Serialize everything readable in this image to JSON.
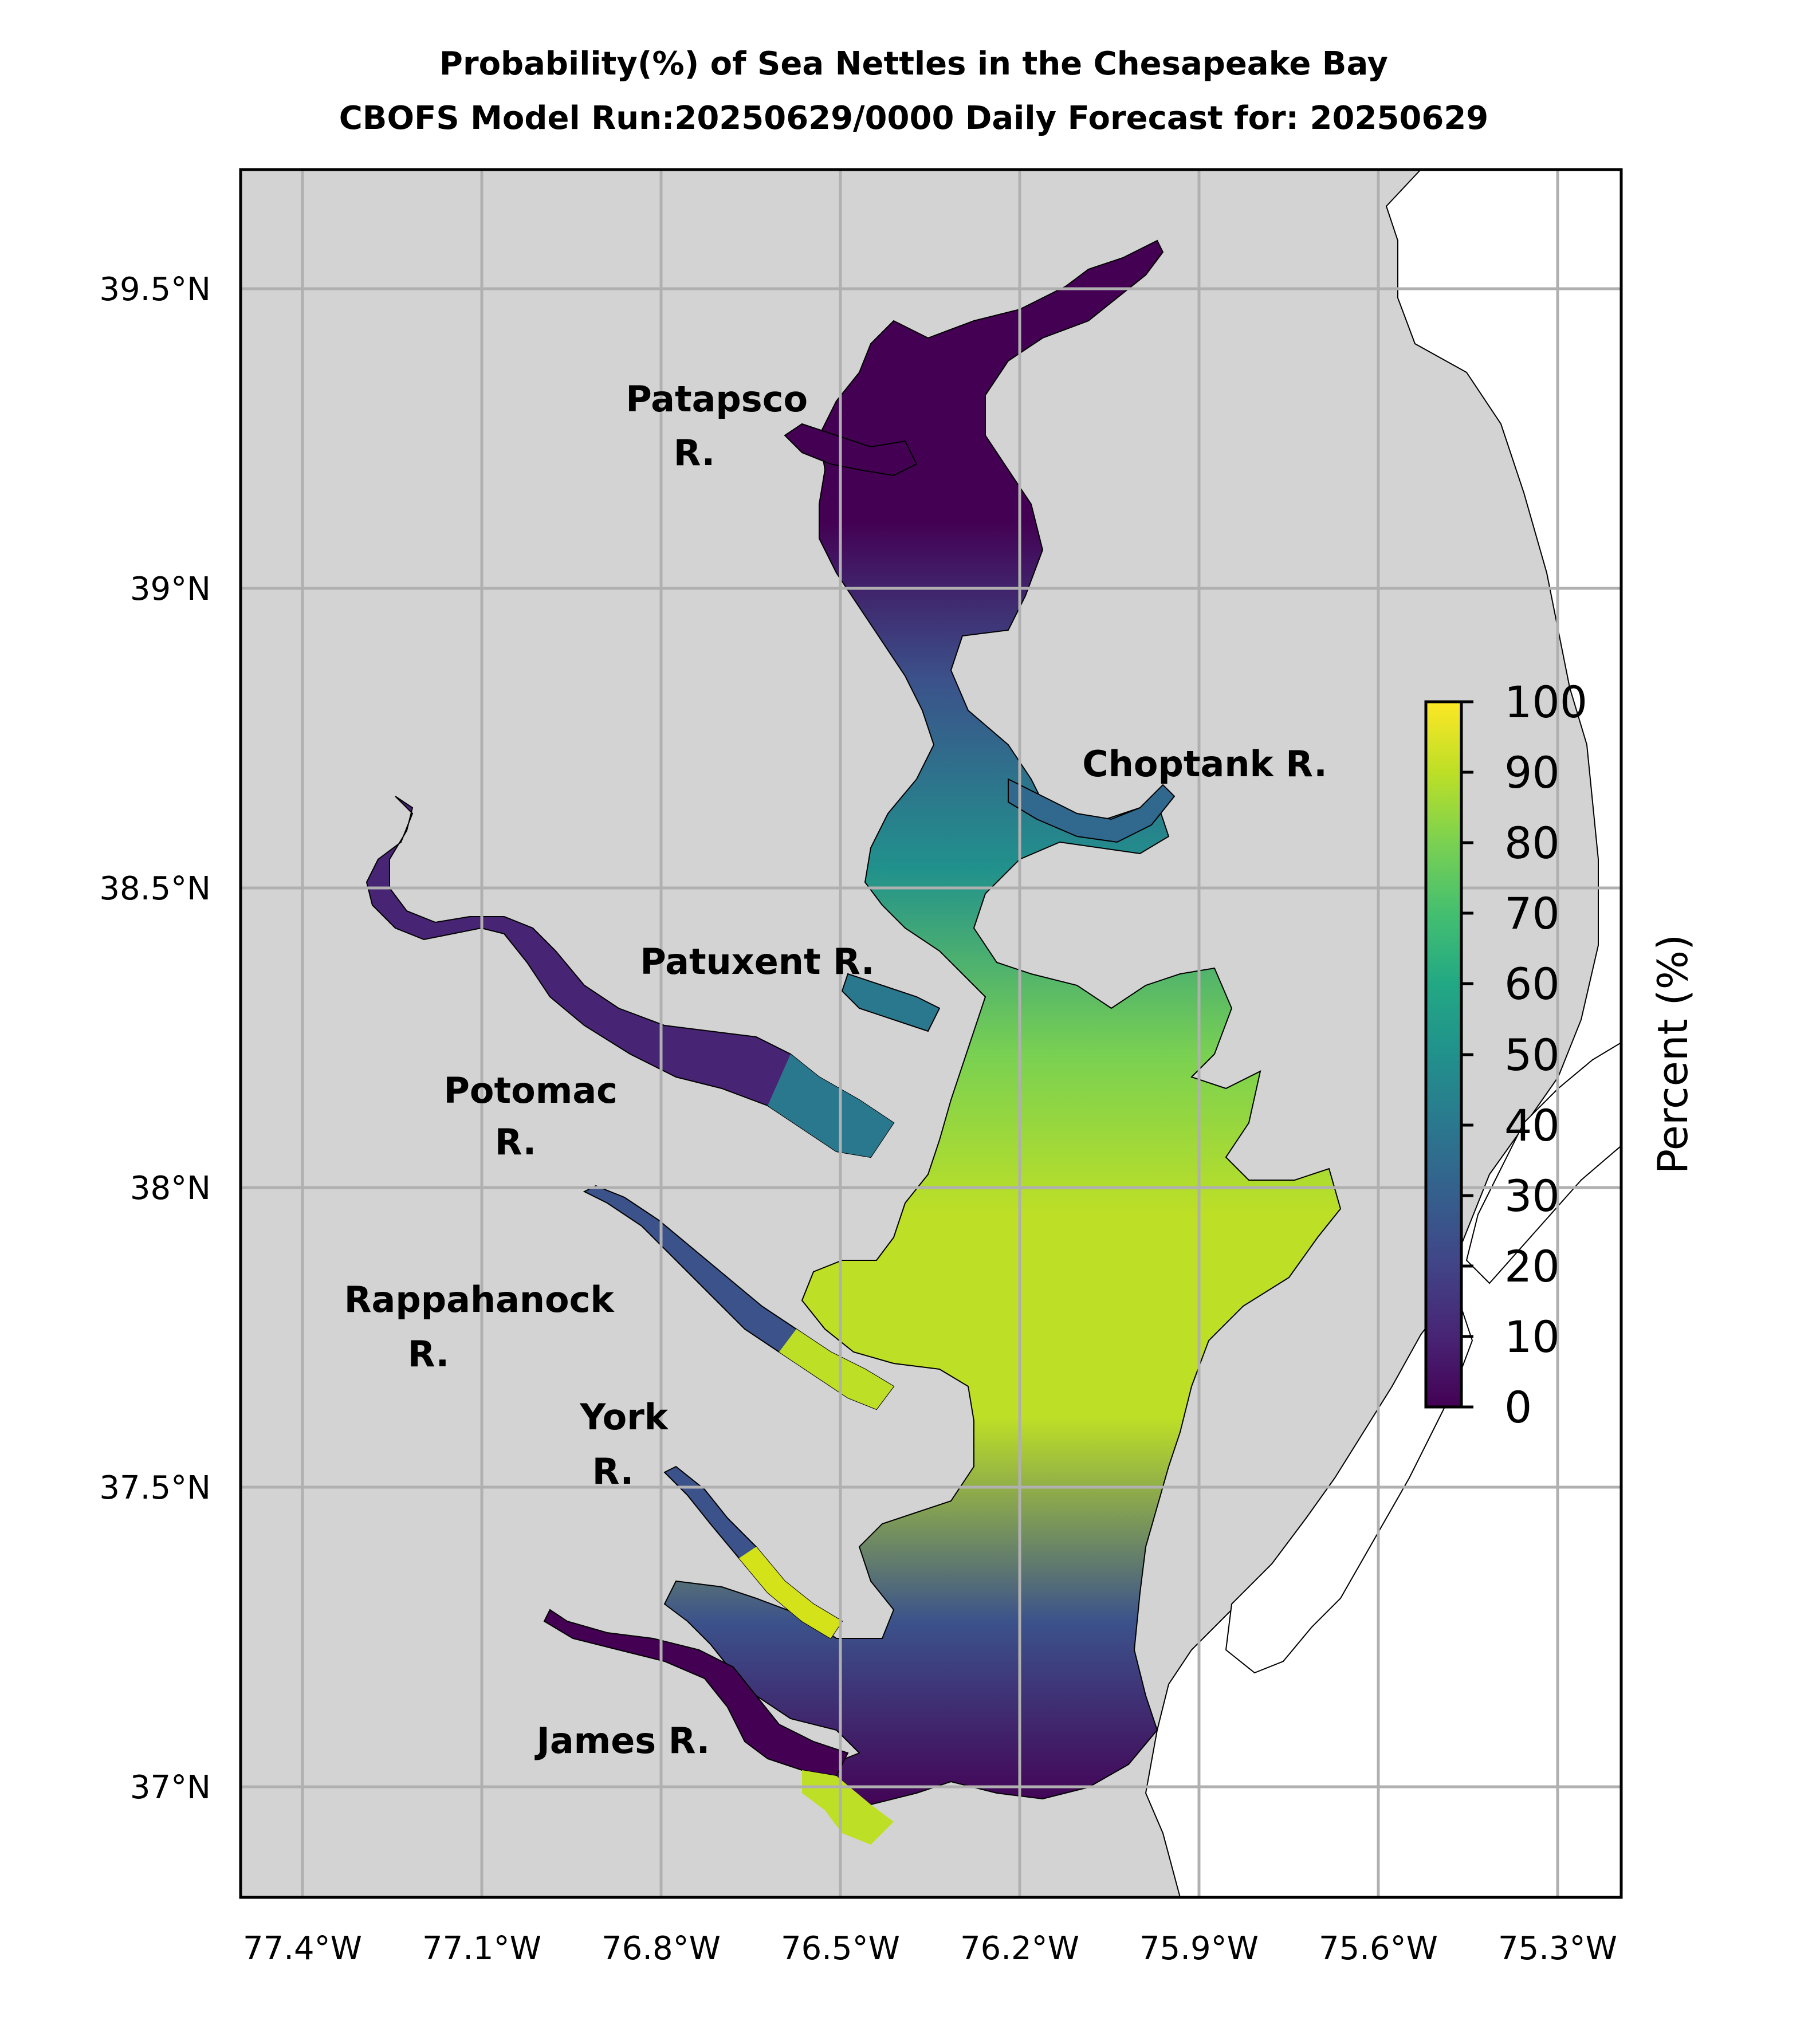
{
  "title": {
    "line1": "Probability(%) of Sea Nettles in the Chesapeake Bay",
    "line2": "CBOFS Model Run:20250629/0000 Daily Forecast for: 20250629"
  },
  "axes": {
    "x_ticks": [
      "77.4°W",
      "77.1°W",
      "76.8°W",
      "76.5°W",
      "76.2°W",
      "75.9°W",
      "75.6°W",
      "75.3°W"
    ],
    "y_ticks": [
      "39.5°N",
      "39°N",
      "38.5°N",
      "38°N",
      "37.5°N",
      "37°N"
    ],
    "x_range_deg": [
      -77.5,
      -75.1
    ],
    "y_range_deg": [
      36.8,
      39.7
    ],
    "grid": true
  },
  "colorbar": {
    "label": "Percent (%)",
    "ticks": [
      "0",
      "10",
      "20",
      "30",
      "40",
      "50",
      "60",
      "70",
      "80",
      "90",
      "100"
    ],
    "colormap": "viridis",
    "range": [
      0,
      100
    ]
  },
  "river_labels": [
    {
      "id": "patapsco",
      "lines": [
        "Patapsco",
        "R."
      ]
    },
    {
      "id": "choptank",
      "lines": [
        "Choptank R."
      ]
    },
    {
      "id": "patuxent",
      "lines": [
        "Patuxent R."
      ]
    },
    {
      "id": "potomac",
      "lines": [
        "Potomac",
        "R."
      ]
    },
    {
      "id": "rappahanock",
      "lines": [
        "Rappahanock",
        "R."
      ]
    },
    {
      "id": "york",
      "lines": [
        "York",
        "R."
      ]
    },
    {
      "id": "james",
      "lines": [
        "James R."
      ]
    }
  ],
  "colors": {
    "land": "#d3d3d3",
    "ocean": "#ffffff",
    "grid": "#b0b0b0",
    "viridis_low": "#440154",
    "viridis_mid": "#21918c",
    "viridis_high": "#fde725"
  }
}
